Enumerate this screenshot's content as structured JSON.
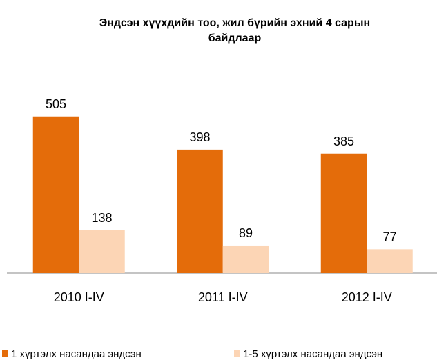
{
  "chart_data": {
    "type": "bar",
    "title": [
      "Эндсэн хүүхдийн тоо, жил бүрийн эхний 4 сарын",
      "байдлаар"
    ],
    "categories": [
      "2010 I-IV",
      "2011 I-IV",
      "2012 I-IV"
    ],
    "series": [
      {
        "name": "1 хүртэлх насандаа эндсэн",
        "color": "#e46c0a",
        "values": [
          505,
          398,
          385
        ]
      },
      {
        "name": "1-5 хүртэлх насандаа эндсэн",
        "color": "#fcd5b5",
        "values": [
          138,
          89,
          77
        ]
      }
    ],
    "ylim": [
      0,
      600
    ],
    "legend": "bottom"
  }
}
